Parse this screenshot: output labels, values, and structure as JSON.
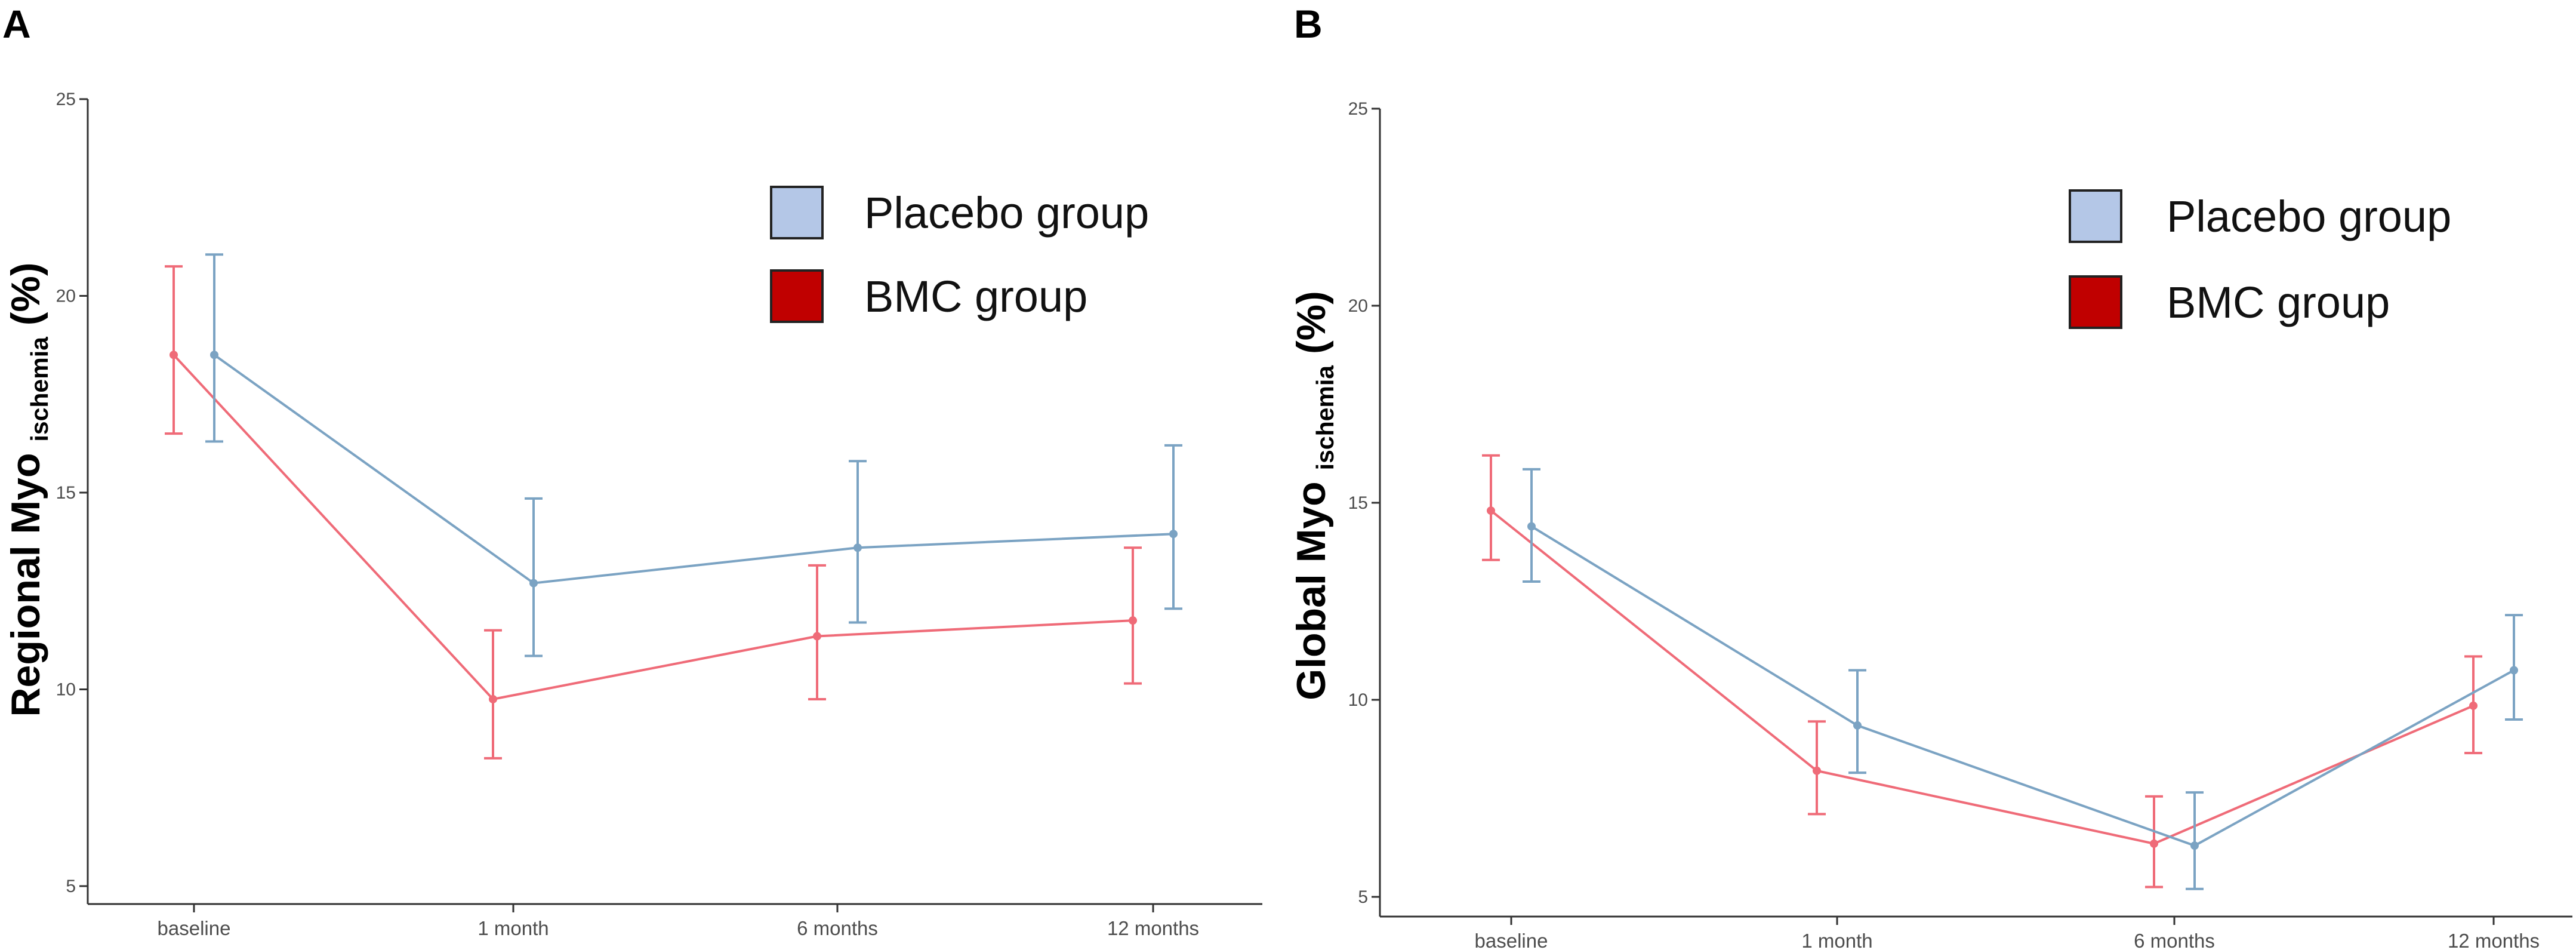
{
  "panels": [
    {
      "letter": "A"
    },
    {
      "letter": "B"
    }
  ],
  "chart_data": [
    {
      "type": "line",
      "panel": "A",
      "title": "",
      "ylabel_main": "Regional Myo",
      "ylabel_sub": "ischemia",
      "ylabel_unit": "(%)",
      "xlabel": "",
      "categories": [
        "baseline",
        "1 month",
        "6 months",
        "12 months"
      ],
      "ylim": [
        5,
        25
      ],
      "yticks": [
        5,
        10,
        15,
        20,
        25
      ],
      "grid": false,
      "legend_position": "top-right",
      "series": [
        {
          "name": "Placebo group",
          "color": "#7ba3c3",
          "legend_color": "#b4c7e7",
          "values": [
            18.5,
            12.7,
            13.6,
            13.95
          ],
          "err_low": [
            16.3,
            10.85,
            11.7,
            12.05
          ],
          "err_high": [
            21.05,
            14.85,
            15.8,
            16.2
          ]
        },
        {
          "name": "BMC group",
          "color": "#ef6b78",
          "legend_color": "#c00000",
          "values": [
            18.5,
            9.75,
            11.35,
            11.75
          ],
          "err_low": [
            16.5,
            8.25,
            9.75,
            10.15
          ],
          "err_high": [
            20.75,
            11.5,
            13.15,
            13.6
          ]
        }
      ]
    },
    {
      "type": "line",
      "panel": "B",
      "title": "",
      "ylabel_main": "Global Myo",
      "ylabel_sub": "ischemia",
      "ylabel_unit": "(%)",
      "xlabel": "",
      "categories": [
        "baseline",
        "1 month",
        "6 months",
        "12 months"
      ],
      "ylim": [
        5,
        25
      ],
      "yticks": [
        5,
        10,
        15,
        20,
        25
      ],
      "grid": false,
      "legend_position": "top-right",
      "series": [
        {
          "name": "Placebo group",
          "color": "#7ba3c3",
          "legend_color": "#b4c7e7",
          "values": [
            14.4,
            9.35,
            6.3,
            10.75
          ],
          "err_low": [
            13.0,
            8.15,
            5.2,
            9.5
          ],
          "err_high": [
            15.85,
            10.75,
            7.65,
            12.15
          ]
        },
        {
          "name": "BMC group",
          "color": "#ef6b78",
          "legend_color": "#c00000",
          "values": [
            14.8,
            8.2,
            6.35,
            9.85
          ],
          "err_low": [
            13.55,
            7.1,
            5.25,
            8.65
          ],
          "err_high": [
            16.2,
            9.45,
            7.55,
            11.1
          ]
        }
      ]
    }
  ]
}
